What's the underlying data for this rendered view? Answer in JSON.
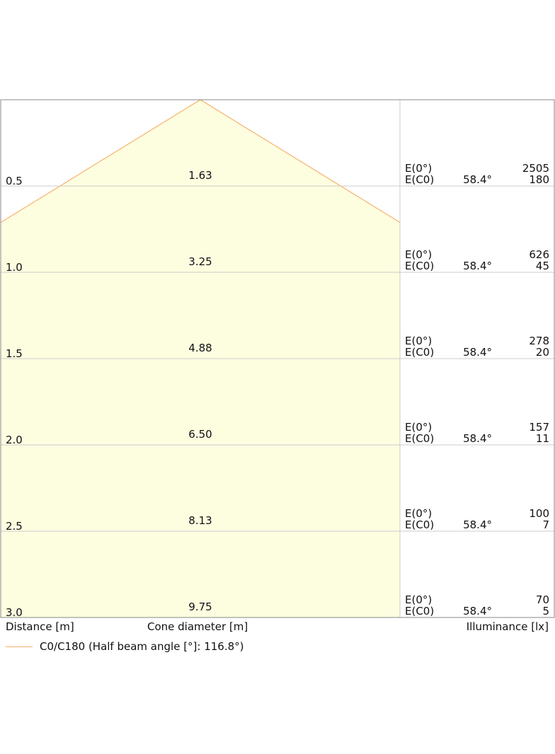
{
  "chart_data": {
    "type": "area",
    "half_beam_angle_deg": 116.8,
    "distance_unit": "m",
    "rows": [
      {
        "distance": "0.5",
        "cone_diameter": "1.63",
        "e0_label": "E(0°)",
        "ec0_label": "E(C0)",
        "angle": "58.4°",
        "e0_value": "2505",
        "ec0_value": "180"
      },
      {
        "distance": "1.0",
        "cone_diameter": "3.25",
        "e0_label": "E(0°)",
        "ec0_label": "E(C0)",
        "angle": "58.4°",
        "e0_value": "626",
        "ec0_value": "45"
      },
      {
        "distance": "1.5",
        "cone_diameter": "4.88",
        "e0_label": "E(0°)",
        "ec0_label": "E(C0)",
        "angle": "58.4°",
        "e0_value": "278",
        "ec0_value": "20"
      },
      {
        "distance": "2.0",
        "cone_diameter": "6.50",
        "e0_label": "E(0°)",
        "ec0_label": "E(C0)",
        "angle": "58.4°",
        "e0_value": "157",
        "ec0_value": "11"
      },
      {
        "distance": "2.5",
        "cone_diameter": "8.13",
        "e0_label": "E(0°)",
        "ec0_label": "E(C0)",
        "angle": "58.4°",
        "e0_value": "100",
        "ec0_value": "7"
      },
      {
        "distance": "3.0",
        "cone_diameter": "9.75",
        "e0_label": "E(0°)",
        "ec0_label": "E(C0)",
        "angle": "58.4°",
        "e0_value": "70",
        "ec0_value": "5"
      }
    ],
    "xlabel_left": "Distance [m]",
    "xlabel_center": "Cone diameter [m]",
    "xlabel_right": "Illuminance [lx]",
    "legend": [
      {
        "label": "C0/C180 (Half beam angle [°]: 116.8°)",
        "color": "#f5b26b"
      }
    ],
    "colors": {
      "cone_fill": "#fdfde0",
      "cone_line": "#f5b26b",
      "grid": "#cccccc",
      "frame": "#888888"
    }
  }
}
